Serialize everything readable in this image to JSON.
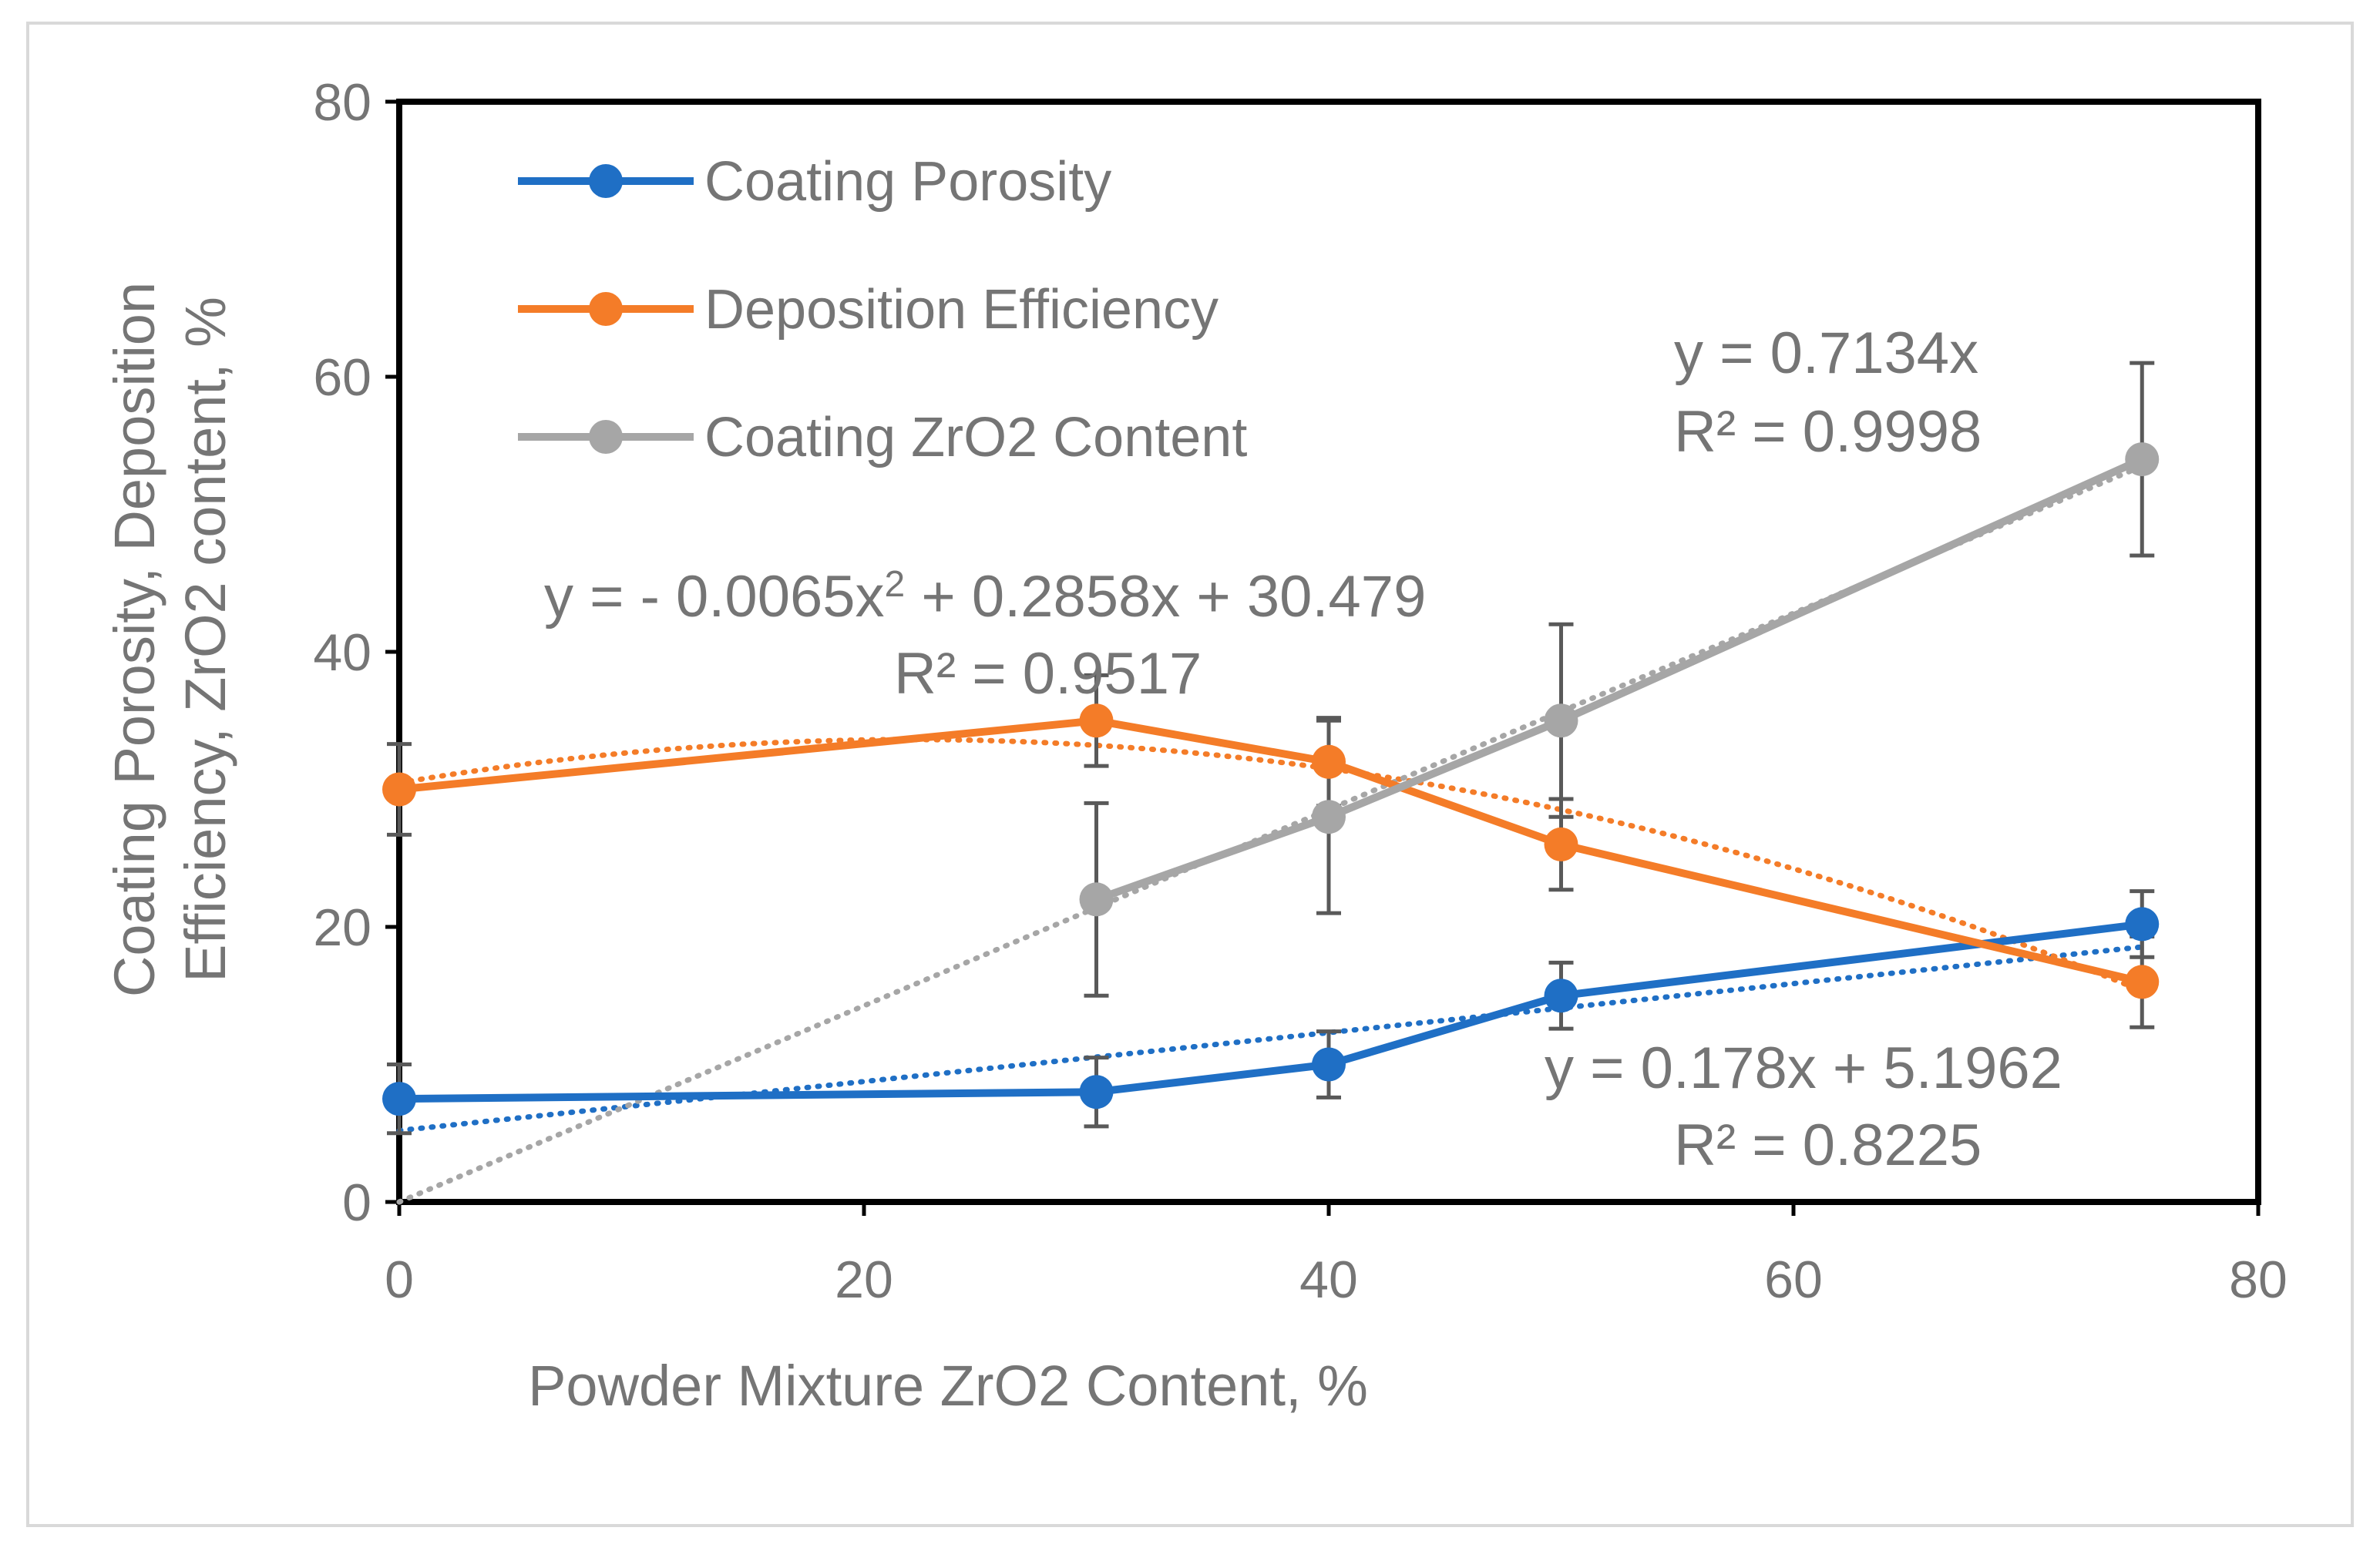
{
  "chart_data": {
    "type": "line",
    "title": "",
    "xlabel": "Powder Mixture ZrO2 Content, %",
    "ylabel_lines": [
      "Coating Porosity, Deposition",
      "Efficiency, ZrO2 content, %"
    ],
    "xlim": [
      0,
      80
    ],
    "ylim": [
      0,
      80
    ],
    "x_ticks": [
      0,
      20,
      40,
      60,
      80
    ],
    "y_ticks": [
      0,
      20,
      40,
      60,
      80
    ],
    "x_tick_labels": [
      "0",
      "20",
      "40",
      "60",
      "80"
    ],
    "y_tick_labels": [
      "0",
      "20",
      "40",
      "60",
      "80"
    ],
    "grid": false,
    "legend_position": "top-left",
    "series": [
      {
        "name": "Coating Porosity",
        "color": "#1f6fc5",
        "x": [
          0,
          30,
          40,
          50,
          75
        ],
        "values": [
          7.5,
          8,
          10,
          15,
          20.2
        ],
        "errors": [
          2.5,
          2.5,
          2.4,
          2.4,
          2.4
        ],
        "trendline": {
          "kind": "linear",
          "slope": 0.178,
          "intercept": 5.1962,
          "x_range": [
            0,
            75
          ]
        }
      },
      {
        "name": "Deposition Efficiency",
        "color": "#f47c28",
        "x": [
          0,
          30,
          40,
          50,
          75
        ],
        "values": [
          30,
          35,
          32,
          26,
          16
        ],
        "errors": [
          3.3,
          3.3,
          3.2,
          3.3,
          3.3
        ],
        "trendline": {
          "kind": "poly2",
          "a": -0.0065,
          "b": 0.2858,
          "c": 30.479,
          "x_range": [
            0,
            75
          ]
        }
      },
      {
        "name": "Coating ZrO2 Content",
        "color": "#a6a6a6",
        "x": [
          30,
          40,
          50,
          75
        ],
        "values": [
          22,
          28,
          35,
          54
        ],
        "errors": [
          7,
          7,
          7,
          7
        ],
        "trendline": {
          "kind": "linear",
          "slope": 0.7134,
          "intercept": 0,
          "x_range": [
            0,
            75
          ]
        }
      }
    ],
    "error_bar_color": "#595959",
    "annotations": [
      {
        "id": "zro2-eq",
        "line1": "y = 0.7134x",
        "line2": "R² = 0.9998"
      },
      {
        "id": "de-eq",
        "line1_pre": "y = - 0.0065x",
        "line1_sup": "2",
        "line1_post": " + 0.2858x + 30.479",
        "line2": "R² = 0.9517"
      },
      {
        "id": "por-eq",
        "line1": "y = 0.178x + 5.1962",
        "line2": "R² = 0.8225"
      }
    ]
  }
}
